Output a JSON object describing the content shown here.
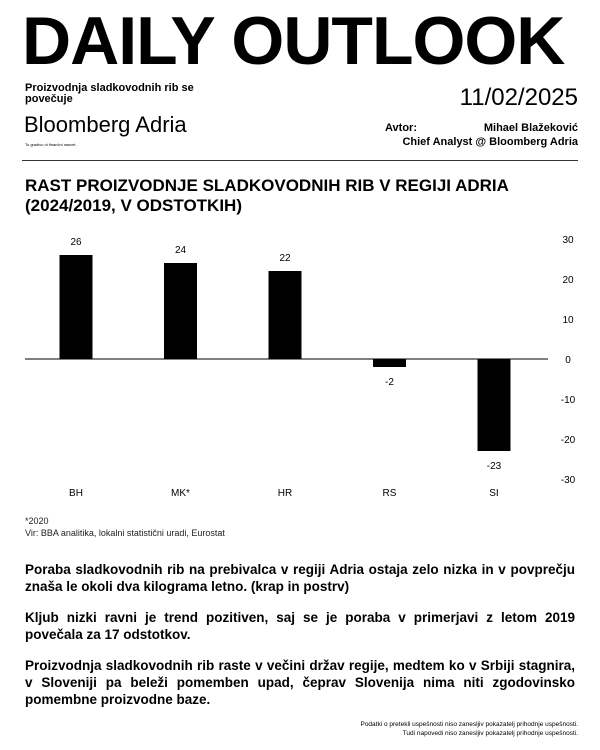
{
  "header": {
    "title": "DAILY OUTLOOK",
    "subtitle": "Proizvodnja sladkovodnih rib se povečuje",
    "date": "11/02/2025",
    "brand": "Bloomberg Adria",
    "disclaimer": "To gradivo ni finančni nasvet.",
    "author_label": "Avtor:",
    "author_name": "Mihael Blažeković",
    "author_role": "Chief Analyst @ Bloomberg Adria"
  },
  "chart_data": {
    "type": "bar",
    "title": "RAST PROIZVODNJE SLADKOVODNIH RIB V REGIJI ADRIA (2024/2019, V ODSTOTKIH)",
    "categories": [
      "BH",
      "MK*",
      "HR",
      "RS",
      "SI"
    ],
    "values": [
      26,
      24,
      22,
      -2,
      -23
    ],
    "ylim": [
      -30,
      30
    ],
    "yticks": [
      30,
      20,
      10,
      0,
      -10,
      -20,
      -30
    ],
    "xlabel": "",
    "ylabel": "",
    "bar_color": "#000000"
  },
  "notes": {
    "footnote": "*2020",
    "source": "Vir: BBA analitika, lokalni statistični uradi, Eurostat"
  },
  "paragraphs": [
    "Poraba sladkovodnih rib na prebivalca v regiji Adria ostaja zelo nizka in v povprečju znaša le okoli dva kilograma letno. (krap in postrv)",
    "Kljub nizki ravni je trend pozitiven, saj se je poraba v primerjavi z letom 2019 povečala za 17 odstotkov.",
    "Proizvodnja sladkovodnih rib raste v večini držav regije, medtem ko v Srbiji stagnira, v Sloveniji pa beleži pomemben upad, čeprav Slovenija nima niti zgodovinsko pomembne proizvodne baze."
  ],
  "footer": [
    "Podatki o pretekli uspešnosti niso zanesljiv pokazatelj prihodnje uspešnosti.",
    "Tudi napovedi niso zanesljiv pokazatelj prihodnje uspešnosti."
  ]
}
